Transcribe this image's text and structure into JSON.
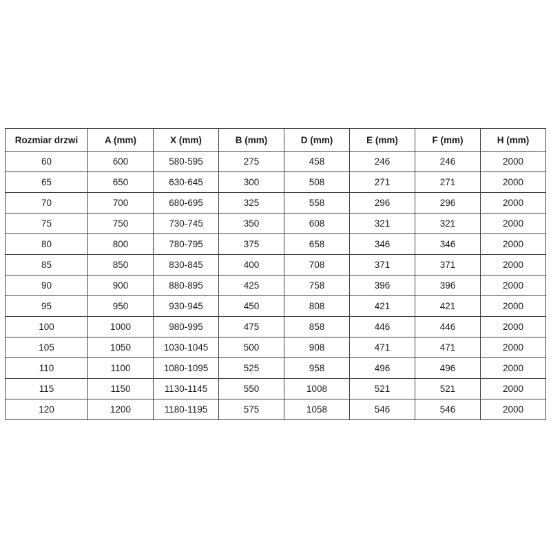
{
  "chart_data": {
    "type": "table",
    "title": "",
    "columns": [
      "Rozmiar drzwi",
      "A (mm)",
      "X (mm)",
      "B (mm)",
      "D (mm)",
      "E (mm)",
      "F (mm)",
      "H (mm)"
    ],
    "rows": [
      [
        "60",
        "600",
        "580-595",
        "275",
        "458",
        "246",
        "246",
        "2000"
      ],
      [
        "65",
        "650",
        "630-645",
        "300",
        "508",
        "271",
        "271",
        "2000"
      ],
      [
        "70",
        "700",
        "680-695",
        "325",
        "558",
        "296",
        "296",
        "2000"
      ],
      [
        "75",
        "750",
        "730-745",
        "350",
        "608",
        "321",
        "321",
        "2000"
      ],
      [
        "80",
        "800",
        "780-795",
        "375",
        "658",
        "346",
        "346",
        "2000"
      ],
      [
        "85",
        "850",
        "830-845",
        "400",
        "708",
        "371",
        "371",
        "2000"
      ],
      [
        "90",
        "900",
        "880-895",
        "425",
        "758",
        "396",
        "396",
        "2000"
      ],
      [
        "95",
        "950",
        "930-945",
        "450",
        "808",
        "421",
        "421",
        "2000"
      ],
      [
        "100",
        "1000",
        "980-995",
        "475",
        "858",
        "446",
        "446",
        "2000"
      ],
      [
        "105",
        "1050",
        "1030-1045",
        "500",
        "908",
        "471",
        "471",
        "2000"
      ],
      [
        "110",
        "1100",
        "1080-1095",
        "525",
        "958",
        "496",
        "496",
        "2000"
      ],
      [
        "115",
        "1150",
        "1130-1145",
        "550",
        "1008",
        "521",
        "521",
        "2000"
      ],
      [
        "120",
        "1200",
        "1180-1195",
        "575",
        "1058",
        "546",
        "546",
        "2000"
      ]
    ],
    "layout": {
      "grid": true,
      "border_color": "#3f3f3f",
      "background": "#ffffff",
      "text_color": "#1a1a1a",
      "header_bold": true
    }
  }
}
